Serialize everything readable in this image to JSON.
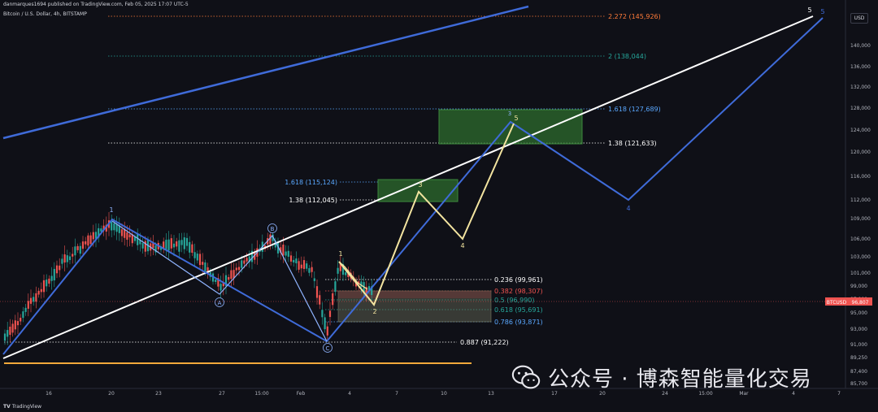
{
  "header": {
    "published_line": "danmarques1694 published on TradingView.com, Feb 05, 2025 17:07 UTC-5",
    "symbol_line": "Bitcoin / U.S. Dollar, 4h, BITSTAMP",
    "currency_button": "USD"
  },
  "footer": {
    "logo_text": "TradingView"
  },
  "watermark": {
    "text": "公众号 · 博森智能量化交易"
  },
  "colors": {
    "background": "#0f1017",
    "bull_candle": "#26a69a",
    "bear_candle": "#ef5350",
    "white_line": "#ffffff",
    "blue_wave": "#3f6bd9",
    "light_blue_wave": "#8fb4ff",
    "yellow_wave": "#f3e4a0",
    "orange_support": "#f2a93b",
    "fib_green": "#26a69a",
    "fib_orange": "#ff7b39",
    "fib_blue": "#5aa8ff",
    "target_box": "#2e6b2e",
    "retrace_box": "#4a5a4a"
  },
  "chart_data": {
    "type": "line",
    "title": "",
    "xlabel": "",
    "ylabel": "",
    "symbol": "BTCUSD",
    "last_price_label": "BTCUSD",
    "last_price_value": "96,807",
    "y_ticks": [
      "140,000",
      "136,000",
      "132,000",
      "128,000",
      "124,000",
      "120,000",
      "116,000",
      "112,000",
      "109,000",
      "106,000",
      "103,000",
      "101,000",
      "99,000",
      "97,000",
      "95,000",
      "93,000",
      "91,000",
      "89,250",
      "87,400",
      "85,700"
    ],
    "x_ticks": [
      "16",
      "20",
      "23",
      "27",
      "15:00",
      "Feb",
      "4",
      "7",
      "10",
      "13",
      "17",
      "20",
      "24",
      "15:00",
      "Mar",
      "4",
      "7"
    ],
    "fib_levels": [
      {
        "label": "2.272 (145,926)",
        "value": 145926,
        "color": "#ff7b39"
      },
      {
        "label": "2 (138,044)",
        "value": 138044,
        "color": "#26a69a"
      },
      {
        "label": "1.618 (127,689)",
        "value": 127689,
        "color": "#5aa8ff"
      },
      {
        "label": "1.38 (121,633)",
        "value": 121633,
        "color": "#ffffff"
      },
      {
        "label": "1.618 (115,124)",
        "value": 115124,
        "color": "#5aa8ff"
      },
      {
        "label": "1.38 (112,045)",
        "value": 112045,
        "color": "#ffffff"
      },
      {
        "label": "0.236 (99,961)",
        "value": 99961,
        "color": "#ffffff"
      },
      {
        "label": "0.382 (98,307)",
        "value": 98307,
        "color": "#ef5350"
      },
      {
        "label": "0.5 (96,990)",
        "value": 96990,
        "color": "#26a69a"
      },
      {
        "label": "0.618 (95,691)",
        "value": 95691,
        "color": "#26a69a"
      },
      {
        "label": "0.786 (93,871)",
        "value": 93871,
        "color": "#5aa8ff"
      },
      {
        "label": "0.887 (91,222)",
        "value": 91222,
        "color": "#ffffff"
      }
    ],
    "wave_labels": {
      "blue": [
        "1",
        "4",
        "5"
      ],
      "abc": [
        "A",
        "B",
        "C"
      ],
      "yellow": [
        "1",
        "2",
        "3",
        "4",
        "5"
      ],
      "small_blue": [
        "3"
      ]
    },
    "series": [
      {
        "name": "",
        "values": []
      }
    ]
  }
}
